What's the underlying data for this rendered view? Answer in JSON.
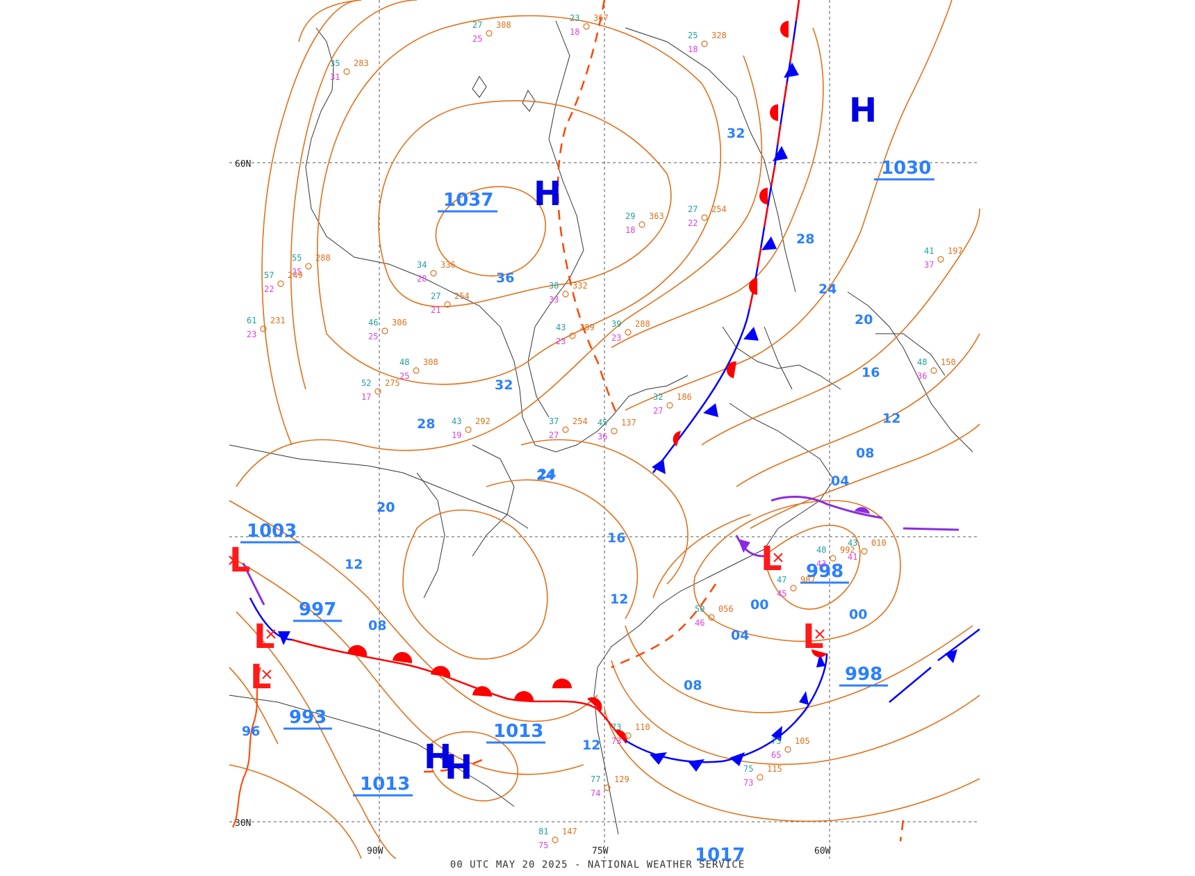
{
  "caption": "00 UTC MAY 20 2025 - NATIONAL WEATHER SERVICE",
  "colors": {
    "isobar": "#e0701a",
    "cold_front": "#0000ff",
    "warm_front": "#ff0000",
    "occluded_front": "#8a2be2",
    "trough": "#ff4400",
    "high_symbol": "#0000e0",
    "low_symbol": "#ff1a1a",
    "pressure_label": "#2b7fff",
    "dew_point": "#20a0a0",
    "temperature": "#e040e0",
    "coastline": "#333333"
  },
  "grid_labels": {
    "lat_60n": "60N",
    "lat_30n": "30N",
    "lon_90w": "90W",
    "lon_75w": "75W",
    "lon_60w": "60W"
  },
  "high_centers": [
    {
      "label": "H",
      "pressure": "1037"
    },
    {
      "label": "H",
      "pressure": "1030"
    },
    {
      "label": "H",
      "pressure": "1013"
    },
    {
      "label": "H",
      "pressure": "1013"
    },
    {
      "label": "H",
      "pressure": "1017"
    }
  ],
  "low_centers": [
    {
      "label": "L",
      "pressure": "998"
    },
    {
      "label": "L",
      "pressure": "998"
    },
    {
      "label": "L",
      "pressure": "997"
    },
    {
      "label": "L",
      "pressure": "993"
    },
    {
      "label": "L",
      "pressure": "1003"
    }
  ],
  "isobar_labels": [
    "36",
    "32",
    "28",
    "24",
    "20",
    "16",
    "12",
    "08",
    "04",
    "00",
    "96",
    "32",
    "28",
    "24",
    "20",
    "16",
    "12",
    "08",
    "04",
    "00",
    "12",
    "08",
    "24",
    "20",
    "12"
  ],
  "station_samples": [
    {
      "t": "27",
      "p": "308",
      "td": "25"
    },
    {
      "t": "23",
      "p": "367",
      "td": "18"
    },
    {
      "t": "25",
      "p": "328",
      "td": "18"
    },
    {
      "t": "34",
      "p": "336",
      "td": "28"
    },
    {
      "t": "27",
      "p": "254",
      "td": "21"
    },
    {
      "t": "55",
      "p": "288",
      "td": "25"
    },
    {
      "t": "57",
      "p": "249",
      "td": "22"
    },
    {
      "t": "61",
      "p": "231",
      "td": "23"
    },
    {
      "t": "46",
      "p": "306",
      "td": "25"
    },
    {
      "t": "39",
      "p": "288",
      "td": "23"
    },
    {
      "t": "43",
      "p": "289",
      "td": "23"
    },
    {
      "t": "38",
      "p": "332",
      "td": "33"
    },
    {
      "t": "29",
      "p": "363",
      "td": "18"
    },
    {
      "t": "27",
      "p": "254",
      "td": "22"
    },
    {
      "t": "32",
      "p": "186",
      "td": "27"
    },
    {
      "t": "45",
      "p": "137",
      "td": "36"
    },
    {
      "t": "37",
      "p": "254",
      "td": "27"
    },
    {
      "t": "43",
      "p": "292",
      "td": "19"
    },
    {
      "t": "73",
      "p": "110",
      "td": "73"
    },
    {
      "t": "73",
      "p": "105",
      "td": "65"
    },
    {
      "t": "75",
      "p": "115",
      "td": "73"
    },
    {
      "t": "77",
      "p": "129",
      "td": "74"
    },
    {
      "t": "81",
      "p": "147",
      "td": "75"
    },
    {
      "t": "41",
      "p": "197",
      "td": "37"
    },
    {
      "t": "48",
      "p": "150",
      "td": "36"
    },
    {
      "t": "50",
      "p": "056",
      "td": "46"
    },
    {
      "t": "48",
      "p": "992",
      "td": "43"
    },
    {
      "t": "47",
      "p": "987",
      "td": "45"
    },
    {
      "t": "43",
      "p": "010",
      "td": "41"
    },
    {
      "t": "35",
      "p": "283",
      "td": "31"
    },
    {
      "t": "52",
      "p": "275",
      "td": "17"
    },
    {
      "t": "48",
      "p": "308",
      "td": "25"
    }
  ]
}
